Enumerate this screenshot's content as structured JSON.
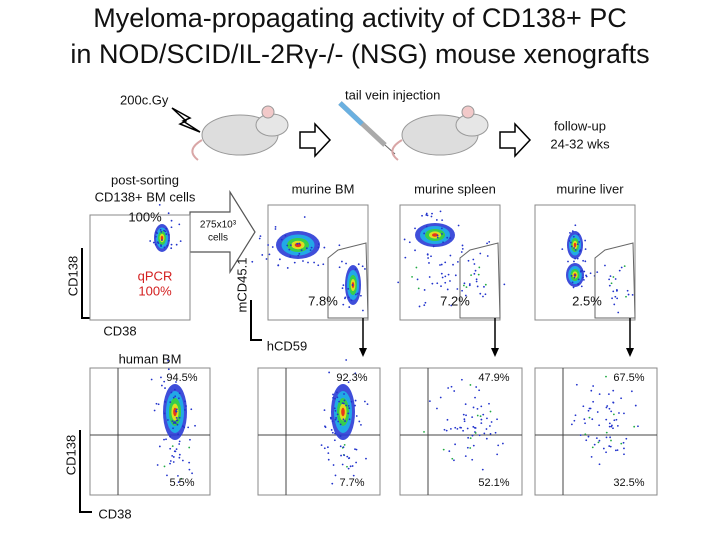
{
  "title": [
    "Myeloma-propagating activity of CD138+ PC",
    "in NOD/SCID/IL-2Rγ-/- (NSG) mouse xenografts"
  ],
  "steps": {
    "irradiation": "200c.Gy",
    "injection": "tail vein injection",
    "follow_up": [
      "follow-up",
      "24-32 wks"
    ]
  },
  "sorting": {
    "label": [
      "post-sorting",
      "CD138+ BM cells"
    ],
    "purity": "100%",
    "cells": [
      "275x10³",
      "cells"
    ],
    "qpcr": [
      "qPCR",
      "100%"
    ],
    "y_axis": "CD138",
    "x_axis": "CD38"
  },
  "murine_panels": [
    {
      "label": "murine BM",
      "percent": "7.8%"
    },
    {
      "label": "murine spleen",
      "percent": "7.2%"
    },
    {
      "label": "murine liver",
      "percent": "2.5%"
    }
  ],
  "murine_axes": {
    "y": "mCD45.1",
    "x": "hCD59"
  },
  "human_panels": [
    {
      "label": "human BM",
      "upper": "94.5%",
      "lower": "5.5%"
    },
    {
      "upper": "92.3%",
      "lower": "7.7%"
    },
    {
      "upper": "47.9%",
      "lower": "52.1%"
    },
    {
      "upper": "67.5%",
      "lower": "32.5%"
    }
  ],
  "human_axes": {
    "y": "CD138",
    "x": "CD38"
  }
}
